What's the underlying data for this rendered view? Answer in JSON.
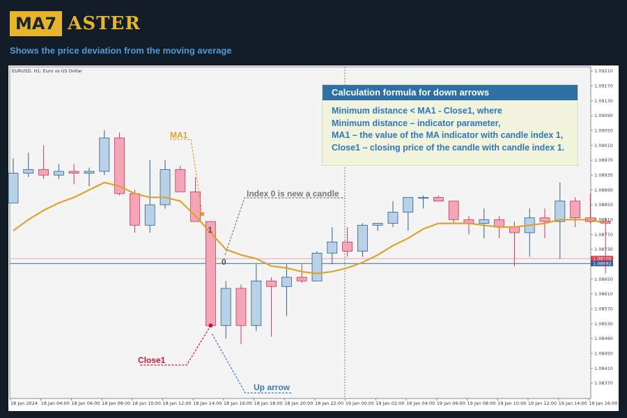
{
  "brand": {
    "logo_box": "MA7",
    "logo_text": "ASTER"
  },
  "subtitle": "Shows the price deviation from the moving average",
  "colors": {
    "bull": "#b9d1e6",
    "bull_border": "#2b5d88",
    "bear": "#f4a5b7",
    "bear_border": "#c73656",
    "ma": "#dea22c",
    "background": "#131d28",
    "info_header": "#2e6fa4"
  },
  "chart": {
    "symbol_label": "EURUSD, H1:  Euro vs US Dollar",
    "price_ticks": [
      "1.09210",
      "1.09170",
      "1.09130",
      "1.09090",
      "1.09050",
      "1.09010",
      "1.08970",
      "1.08930",
      "1.08890",
      "1.08850",
      "1.08810",
      "1.08770",
      "1.08730",
      "1.08690",
      "1.08650",
      "1.08610",
      "1.08570",
      "1.08530",
      "1.08490",
      "1.08450",
      "1.08410",
      "1.08370"
    ],
    "time_ticks": [
      "18 Jan 2024",
      "18 Jan 04:00",
      "18 Jan 06:00",
      "18 Jan 08:00",
      "18 Jan 10:00",
      "18 Jan 12:00",
      "18 Jan 14:00",
      "18 Jan 16:00",
      "18 Jan 18:00",
      "18 Jan 20:00",
      "18 Jan 22:00",
      "19 Jan 00:00",
      "19 Jan 02:00",
      "19 Jan 04:00",
      "19 Jan 06:00",
      "19 Jan 08:00",
      "19 Jan 10:00",
      "19 Jan 12:00",
      "19 Jan 14:00",
      "19 Jan 16:00"
    ],
    "bid_line": "1.08705",
    "ask_line": "1.08692"
  },
  "chart_data": {
    "type": "candlestick",
    "symbol": "EURUSD",
    "timeframe": "H1",
    "ylim": [
      1.0833,
      1.0924
    ],
    "candles": [
      {
        "o": 1.08855,
        "h": 1.08975,
        "l": 1.08855,
        "c": 1.08935
      },
      {
        "o": 1.08935,
        "h": 1.0899,
        "l": 1.08925,
        "c": 1.08945
      },
      {
        "o": 1.08945,
        "h": 1.0901,
        "l": 1.0892,
        "c": 1.0893
      },
      {
        "o": 1.0893,
        "h": 1.0896,
        "l": 1.0892,
        "c": 1.0894
      },
      {
        "o": 1.0894,
        "h": 1.0896,
        "l": 1.08905,
        "c": 1.08935
      },
      {
        "o": 1.08935,
        "h": 1.0895,
        "l": 1.089,
        "c": 1.0894
      },
      {
        "o": 1.0894,
        "h": 1.0905,
        "l": 1.0893,
        "c": 1.0903
      },
      {
        "o": 1.0903,
        "h": 1.09045,
        "l": 1.08875,
        "c": 1.0888
      },
      {
        "o": 1.0888,
        "h": 1.0889,
        "l": 1.08775,
        "c": 1.08795
      },
      {
        "o": 1.08795,
        "h": 1.0897,
        "l": 1.08775,
        "c": 1.0885
      },
      {
        "o": 1.0885,
        "h": 1.0897,
        "l": 1.0884,
        "c": 1.08945
      },
      {
        "o": 1.08945,
        "h": 1.08955,
        "l": 1.08885,
        "c": 1.08885
      },
      {
        "o": 1.08885,
        "h": 1.08925,
        "l": 1.08805,
        "c": 1.08805
      },
      {
        "o": 1.08805,
        "h": 1.08805,
        "l": 1.0852,
        "c": 1.08525
      },
      {
        "o": 1.08525,
        "h": 1.08645,
        "l": 1.0849,
        "c": 1.08625
      },
      {
        "o": 1.08625,
        "h": 1.08635,
        "l": 1.08475,
        "c": 1.08525
      },
      {
        "o": 1.08525,
        "h": 1.0869,
        "l": 1.0851,
        "c": 1.08645
      },
      {
        "o": 1.08645,
        "h": 1.08655,
        "l": 1.08495,
        "c": 1.0863
      },
      {
        "o": 1.0863,
        "h": 1.0869,
        "l": 1.0855,
        "c": 1.08655
      },
      {
        "o": 1.08655,
        "h": 1.0869,
        "l": 1.0864,
        "c": 1.08645
      },
      {
        "o": 1.08645,
        "h": 1.08725,
        "l": 1.08645,
        "c": 1.0872
      },
      {
        "o": 1.0872,
        "h": 1.0879,
        "l": 1.0869,
        "c": 1.0875
      },
      {
        "o": 1.0875,
        "h": 1.0879,
        "l": 1.0871,
        "c": 1.08725
      },
      {
        "o": 1.08725,
        "h": 1.088,
        "l": 1.0871,
        "c": 1.08795
      },
      {
        "o": 1.08795,
        "h": 1.088,
        "l": 1.0878,
        "c": 1.088
      },
      {
        "o": 1.088,
        "h": 1.0886,
        "l": 1.0879,
        "c": 1.0883
      },
      {
        "o": 1.0883,
        "h": 1.0887,
        "l": 1.0878,
        "c": 1.0887
      },
      {
        "o": 1.0887,
        "h": 1.08875,
        "l": 1.0884,
        "c": 1.0887
      },
      {
        "o": 1.0887,
        "h": 1.08875,
        "l": 1.0886,
        "c": 1.0886
      },
      {
        "o": 1.0886,
        "h": 1.0886,
        "l": 1.088,
        "c": 1.0881
      },
      {
        "o": 1.0881,
        "h": 1.0882,
        "l": 1.0877,
        "c": 1.088
      },
      {
        "o": 1.088,
        "h": 1.0884,
        "l": 1.0876,
        "c": 1.0881
      },
      {
        "o": 1.0881,
        "h": 1.0882,
        "l": 1.0876,
        "c": 1.0879
      },
      {
        "o": 1.0879,
        "h": 1.08805,
        "l": 1.08685,
        "c": 1.08775
      },
      {
        "o": 1.08775,
        "h": 1.0884,
        "l": 1.0871,
        "c": 1.08815
      },
      {
        "o": 1.08815,
        "h": 1.0884,
        "l": 1.0876,
        "c": 1.08805
      },
      {
        "o": 1.08805,
        "h": 1.0891,
        "l": 1.08705,
        "c": 1.0886
      },
      {
        "o": 1.0886,
        "h": 1.0887,
        "l": 1.0879,
        "c": 1.08815
      },
      {
        "o": 1.08815,
        "h": 1.0888,
        "l": 1.088,
        "c": 1.08805
      },
      {
        "o": 1.08805,
        "h": 1.08815,
        "l": 1.08665,
        "c": 1.088
      }
    ],
    "ma": [
      1.0878,
      1.0881,
      1.08835,
      1.08855,
      1.0887,
      1.0889,
      1.0891,
      1.089,
      1.0888,
      1.0887,
      1.0887,
      1.0886,
      1.0882,
      1.08775,
      1.0873,
      1.08715,
      1.08705,
      1.08685,
      1.0868,
      1.0867,
      1.08665,
      1.0867,
      1.0868,
      1.08695,
      1.08715,
      1.0874,
      1.0876,
      1.08785,
      1.088,
      1.088,
      1.088,
      1.08795,
      1.0879,
      1.0879,
      1.08795,
      1.088,
      1.0881,
      1.0881,
      1.0881,
      1.088
    ]
  },
  "annotations": {
    "ma1": "MA1",
    "idx1": "1",
    "idx0": "0",
    "index0_text": "Index 0 is new a candle",
    "close1": "Close1",
    "up_arrow": "Up arrow"
  },
  "info": {
    "header": "Calculation formula for down arrows",
    "lines": [
      "Minimum distance < MA1 - Close1, where",
      "Minimum distance – indicator parameter,",
      "MA1 – the value of the MA indicator with candle index 1,",
      "Close1 – closing price of the candle with candle index 1."
    ]
  }
}
